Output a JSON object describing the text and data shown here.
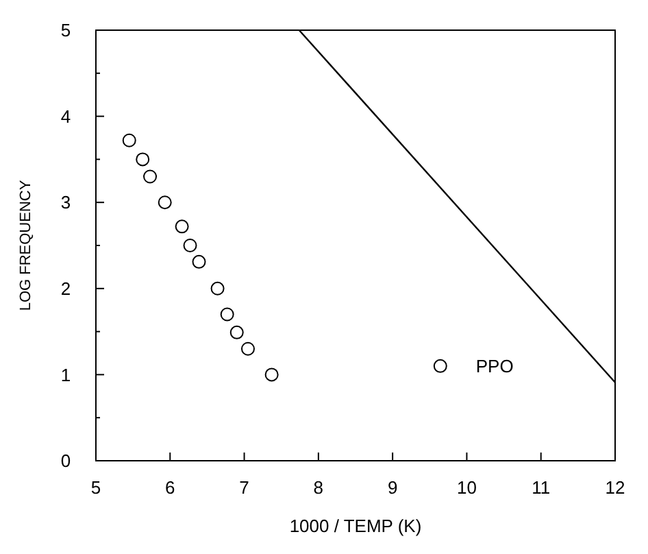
{
  "chart_data": {
    "type": "scatter",
    "xlabel": "1000 / TEMP (K)",
    "ylabel": "LOG FREQUENCY",
    "xlim": [
      5,
      12
    ],
    "ylim": [
      0,
      5
    ],
    "xticks": [
      5,
      6,
      7,
      8,
      9,
      10,
      11,
      12
    ],
    "yticks": [
      0,
      {
        "value": 0.5,
        "label": null
      },
      1,
      {
        "value": 1.5,
        "label": null
      },
      2,
      {
        "value": 2.5,
        "label": null
      },
      3,
      {
        "value": 3.5,
        "label": null
      },
      4,
      {
        "value": 4.5,
        "label": null
      },
      5
    ],
    "legend": "bottom right",
    "grid": false,
    "series": [
      {
        "type": "line",
        "color": "#000000",
        "line_style": "solid",
        "marker": "none",
        "x": [
          7.74,
          12
        ],
        "values": [
          5,
          0.91
        ]
      },
      {
        "name": "PPO",
        "color": "#000000",
        "marker": "circle",
        "x": [
          5.45,
          5.63,
          5.73,
          5.93,
          6.16,
          6.27,
          6.39,
          6.64,
          6.77,
          6.9,
          7.05,
          7.37
        ],
        "values": [
          3.72,
          3.5,
          3.3,
          3.0,
          2.72,
          2.5,
          2.31,
          2.0,
          1.7,
          1.49,
          1.3,
          1.0
        ]
      }
    ]
  }
}
